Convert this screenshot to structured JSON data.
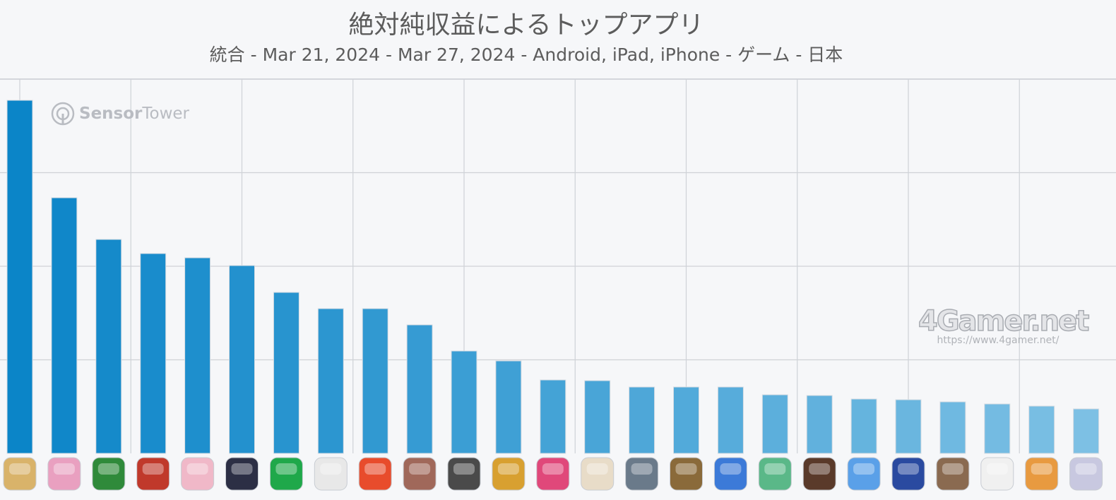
{
  "chart_data": {
    "type": "bar",
    "title": "絶対純収益によるトップアプリ",
    "subtitle": "統合 - Mar 21, 2024 - Mar 27, 2024 - Android, iPad, iPhone - ゲーム - 日本",
    "categories": [
      "app-1",
      "app-2",
      "app-3",
      "app-4",
      "app-5",
      "app-6",
      "app-7",
      "app-8",
      "app-9",
      "app-10",
      "app-11",
      "app-12",
      "app-13",
      "app-14",
      "app-15",
      "app-16",
      "app-17",
      "app-18",
      "app-19",
      "app-20",
      "app-21",
      "app-22",
      "app-23",
      "app-24",
      "app-25"
    ],
    "values": [
      100,
      72.4,
      60.6,
      56.6,
      55.4,
      53.2,
      45.6,
      41.0,
      41.0,
      36.4,
      29.0,
      26.2,
      20.8,
      20.6,
      18.8,
      18.8,
      18.8,
      16.6,
      16.4,
      15.4,
      15.2,
      14.6,
      14.0,
      13.4,
      12.6
    ],
    "ylim": [
      0,
      100
    ],
    "yticks": [
      0,
      26.5,
      53,
      79.5
    ],
    "grid": true,
    "bar_color_gradient": [
      "#0b85c8",
      "#7dc0e4"
    ],
    "x_icon_colors": [
      "#d9b36a",
      "#e9a0c0",
      "#2f8a3a",
      "#c0392b",
      "#f0b8c8",
      "#2c2f45",
      "#1fa84a",
      "#e8e8e8",
      "#e84c2c",
      "#a0685a",
      "#4a4a4a",
      "#d8a030",
      "#e0487a",
      "#e8dcc8",
      "#6a7a8a",
      "#8a6a3a",
      "#3c7ad8",
      "#5ab888",
      "#5a3a2a",
      "#5aa0e8",
      "#2a4aa0",
      "#8a6a50",
      "#f0f0f0",
      "#e89a40",
      "#c8c8e0"
    ]
  },
  "watermarks": {
    "sensor_bold": "Sensor",
    "sensor_light": "Tower",
    "site_logo": "4Gamer.net",
    "site_url": "https://www.4gamer.net/"
  }
}
